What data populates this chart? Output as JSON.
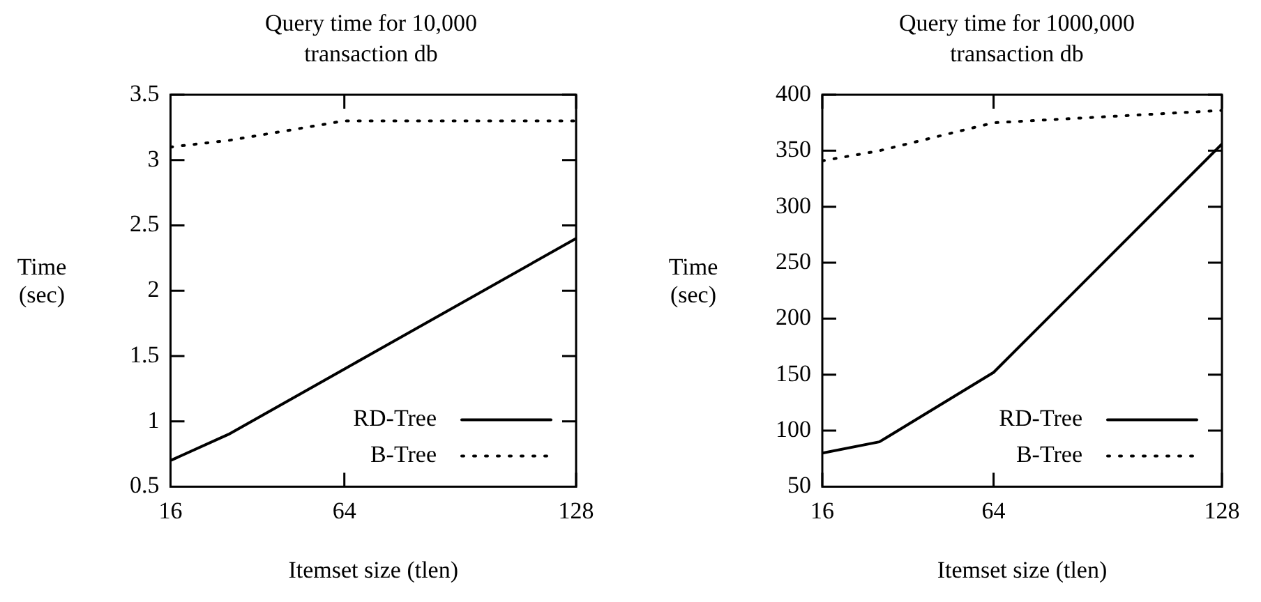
{
  "chart_data": [
    {
      "type": "line",
      "title": "Query time for 10,000 transaction db",
      "xlabel": "Itemset size (tlen)",
      "ylabel": "Time (sec)",
      "x": [
        16,
        32,
        64,
        128
      ],
      "series": [
        {
          "name": "RD-Tree",
          "color": "#000000",
          "values": [
            0.7,
            0.9,
            1.4,
            2.4
          ],
          "line_style": "solid"
        },
        {
          "name": "B-Tree",
          "color": "#000000",
          "values": [
            3.1,
            3.15,
            3.3,
            3.3
          ],
          "line_style": "dotted"
        }
      ],
      "xlim": [
        16,
        128
      ],
      "xticks": [
        16,
        64,
        128
      ],
      "ylim": [
        0.5,
        3.5
      ],
      "yticks": [
        0.5,
        1,
        1.5,
        2,
        2.5,
        3,
        3.5
      ],
      "grid": false,
      "legend": "bottom right",
      "marker": "none"
    },
    {
      "type": "line",
      "title": "Query time for 1000,000 transaction db",
      "xlabel": "Itemset size (tlen)",
      "ylabel": "Time (sec)",
      "x": [
        16,
        32,
        64,
        128
      ],
      "series": [
        {
          "name": "RD-Tree",
          "color": "#000000",
          "values": [
            80,
            90,
            152,
            356
          ],
          "line_style": "solid"
        },
        {
          "name": "B-Tree",
          "color": "#000000",
          "values": [
            341,
            350,
            375,
            386
          ],
          "line_style": "dotted"
        }
      ],
      "xlim": [
        16,
        128
      ],
      "xticks": [
        16,
        64,
        128
      ],
      "ylim": [
        50,
        400
      ],
      "yticks": [
        50,
        100,
        150,
        200,
        250,
        300,
        350,
        400
      ],
      "grid": false,
      "legend": "bottom right",
      "marker": "none"
    }
  ]
}
